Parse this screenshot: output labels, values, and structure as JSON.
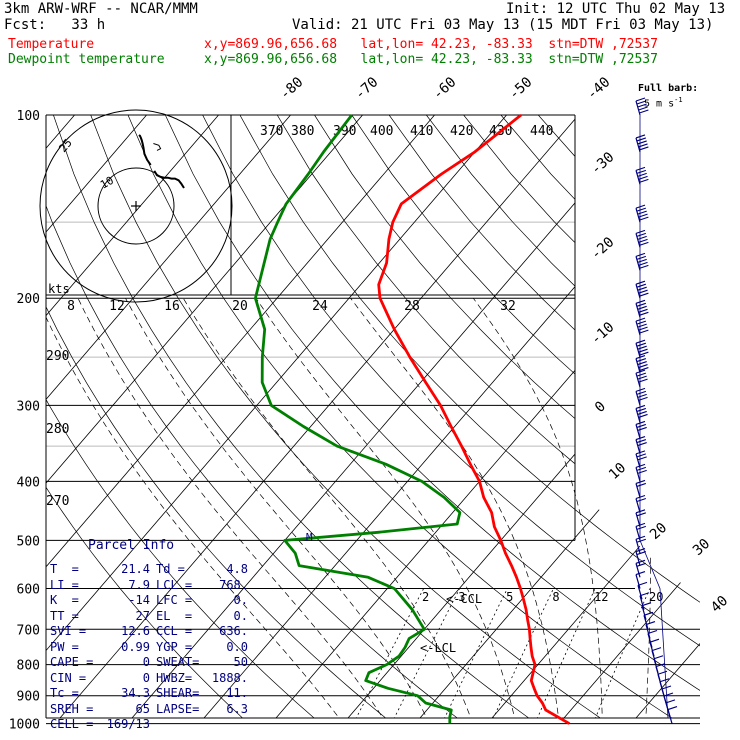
{
  "header": {
    "line1_left": "3km ARW-WRF -- NCAR/MMM",
    "line1_right": "Init: 12 UTC Thu 02 May 13",
    "line2_left": "Fcst:   33 h",
    "line2_right": "Valid: 21 UTC Fri 03 May 13 (15 MDT Fri 03 May 13)",
    "temp_label": "Temperature",
    "temp_info": "x,y=869.96,656.68   lat,lon= 42.23, -83.33  stn=DTW ,72537",
    "dew_label": "Dewpoint temperature",
    "dew_info": "x,y=869.96,656.68   lat,lon= 42.23, -83.33  stn=DTW ,72537",
    "full_barb": "Full barb:",
    "full_barb_units": "5 m s",
    "full_barb_exp": "-1"
  },
  "colors": {
    "temperature": "#ff0000",
    "dewpoint": "#008000",
    "wind": "#000080",
    "parcel_text": "#000080",
    "grid": "#000000"
  },
  "chart_data": {
    "type": "line",
    "subtype": "skew-T log-p",
    "y_scale": "log",
    "ylabel": "",
    "pressure_levels_hPa": [
      "100",
      "200",
      "300",
      "400",
      "500",
      "600",
      "700",
      "800",
      "900",
      "1000"
    ],
    "isotherm_labels_C": [
      "-80",
      "-70",
      "-60",
      "-50",
      "-40",
      "-30",
      "-20",
      "-10",
      "0",
      "10",
      "20",
      "30",
      "40"
    ],
    "theta_labels_K": [
      "370",
      "380",
      "390",
      "400",
      "410",
      "420",
      "430",
      "440"
    ],
    "dry_adiabat_labels_K": [
      "290",
      "280",
      "270"
    ],
    "mixing_ratio_labels": [
      "2",
      "3",
      "5",
      "8",
      "12",
      "20"
    ],
    "pw_axis_labels": [
      "8",
      "12",
      "16",
      "20",
      "24",
      "28",
      "32"
    ],
    "series": [
      {
        "name": "Temperature",
        "color": "#ff0000",
        "points_p_T": [
          [
            1000,
            21.4
          ],
          [
            975,
            19
          ],
          [
            950,
            16.5
          ],
          [
            925,
            15.2
          ],
          [
            900,
            13.6
          ],
          [
            875,
            12.3
          ],
          [
            850,
            11.0
          ],
          [
            825,
            10.3
          ],
          [
            800,
            9.6
          ],
          [
            775,
            8.2
          ],
          [
            750,
            7.0
          ],
          [
            725,
            5.8
          ],
          [
            700,
            4.6
          ],
          [
            675,
            3.2
          ],
          [
            650,
            1.8
          ],
          [
            625,
            0.2
          ],
          [
            600,
            -1.5
          ],
          [
            575,
            -3.4
          ],
          [
            550,
            -5.5
          ],
          [
            525,
            -7.8
          ],
          [
            500,
            -10.0
          ],
          [
            475,
            -12.5
          ],
          [
            450,
            -14.6
          ],
          [
            425,
            -17.5
          ],
          [
            400,
            -20.0
          ],
          [
            375,
            -23.3
          ],
          [
            350,
            -26.7
          ],
          [
            325,
            -30.5
          ],
          [
            300,
            -34.5
          ],
          [
            275,
            -39.3
          ],
          [
            250,
            -44.5
          ],
          [
            225,
            -50.0
          ],
          [
            200,
            -55.7
          ],
          [
            190,
            -57.5
          ],
          [
            175,
            -59.0
          ],
          [
            160,
            -61.5
          ],
          [
            150,
            -63.0
          ],
          [
            140,
            -64.0
          ],
          [
            125,
            -62.0
          ],
          [
            115,
            -60.0
          ],
          [
            100,
            -58.0
          ]
        ]
      },
      {
        "name": "Dewpoint temperature",
        "color": "#008000",
        "points_p_T": [
          [
            1000,
            4.8
          ],
          [
            975,
            4.0
          ],
          [
            950,
            3.4
          ],
          [
            925,
            -1.0
          ],
          [
            900,
            -3.0
          ],
          [
            875,
            -8.0
          ],
          [
            850,
            -12.0
          ],
          [
            825,
            -12.5
          ],
          [
            800,
            -11.0
          ],
          [
            775,
            -10.3
          ],
          [
            750,
            -10.5
          ],
          [
            725,
            -11.0
          ],
          [
            700,
            -10.0
          ],
          [
            650,
            -14.0
          ],
          [
            600,
            -19.0
          ],
          [
            575,
            -24.0
          ],
          [
            550,
            -35.0
          ],
          [
            525,
            -37.0
          ],
          [
            500,
            -40.0
          ],
          [
            485,
            -28.0
          ],
          [
            470,
            -18.0
          ],
          [
            450,
            -19.0
          ],
          [
            425,
            -23.0
          ],
          [
            400,
            -28.0
          ],
          [
            375,
            -35.0
          ],
          [
            350,
            -44.0
          ],
          [
            325,
            -51.0
          ],
          [
            300,
            -58.0
          ],
          [
            275,
            -62.0
          ],
          [
            250,
            -65.0
          ],
          [
            225,
            -68.0
          ],
          [
            200,
            -73.0
          ],
          [
            175,
            -76.0
          ],
          [
            160,
            -78.0
          ],
          [
            150,
            -79.0
          ],
          [
            140,
            -80.0
          ],
          [
            125,
            -80.5
          ],
          [
            115,
            -81.0
          ],
          [
            100,
            -81.5
          ]
        ]
      }
    ],
    "winds": {
      "name": "Wind barbs",
      "color": "#000080",
      "levels_hPa": [
        100,
        115,
        130,
        150,
        165,
        180,
        200,
        215,
        230,
        250,
        265,
        280,
        300,
        320,
        340,
        360,
        380,
        400,
        425,
        450,
        475,
        500,
        525,
        550,
        575,
        600,
        625,
        650,
        675,
        700,
        725,
        750,
        775,
        800,
        825,
        850,
        875,
        900,
        925,
        950,
        975,
        1000
      ],
      "speed_ms": [
        25,
        30,
        32,
        35,
        35,
        33,
        30,
        30,
        28,
        25,
        25,
        22,
        20,
        18,
        17,
        15,
        14,
        13,
        12,
        11,
        10,
        10,
        9,
        8,
        8,
        7,
        6,
        6,
        5,
        5,
        5,
        5,
        5,
        5,
        5,
        5,
        5,
        5,
        5,
        5,
        5,
        5
      ]
    }
  },
  "hodograph": {
    "units_label": "kts",
    "ring_labels": [
      "10",
      "25"
    ],
    "points_uv": [
      [
        0,
        0
      ],
      [
        3,
        5
      ],
      [
        6,
        9
      ],
      [
        10,
        11
      ],
      [
        14,
        11
      ],
      [
        18,
        12
      ],
      [
        22,
        12
      ],
      [
        26,
        13
      ],
      [
        30,
        15
      ],
      [
        33,
        20
      ],
      [
        37,
        27
      ],
      [
        41,
        33
      ],
      [
        44,
        40
      ],
      [
        45,
        47
      ],
      [
        46,
        52
      ],
      [
        47,
        56
      ],
      [
        48,
        59
      ],
      [
        49,
        61
      ],
      [
        50,
        62
      ]
    ],
    "gap_index": 10,
    "bracket_uv": [
      [
        30,
        44
      ],
      [
        26,
        46
      ],
      [
        28,
        50
      ],
      [
        34,
        52
      ]
    ]
  },
  "markers": {
    "ccl": "<-CCL",
    "lcl": "<-LCL",
    "melting": "M"
  },
  "parcel_info": {
    "title": "Parcel Info",
    "rows": [
      {
        "l": "T  =",
        "lv": "21.4",
        "r": "Td =",
        "rv": "4.8"
      },
      {
        "l": "LI =",
        "lv": "7.9",
        "r": "LCL =",
        "rv": "768."
      },
      {
        "l": "K  =",
        "lv": "-14",
        "r": "LFC =",
        "rv": "0."
      },
      {
        "l": "TT =",
        "lv": "27",
        "r": "EL  =",
        "rv": "0."
      },
      {
        "l": "SVI =",
        "lv": "12.6",
        "r": "CCL =",
        "rv": "636."
      },
      {
        "l": "PW =",
        "lv": "0.99",
        "r": "YGP =",
        "rv": "0.0"
      },
      {
        "l": "CAPE =",
        "lv": "0",
        "r": "SWEAT=",
        "rv": "50"
      },
      {
        "l": "CIN =",
        "lv": "0",
        "r": "HWBZ=",
        "rv": "1888."
      },
      {
        "l": "Tc =",
        "lv": "34.3",
        "r": "SHEAR=",
        "rv": "11."
      },
      {
        "l": "SREH =",
        "lv": "65",
        "r": "LAPSE=",
        "rv": "6.3"
      },
      {
        "l": "CELL =",
        "lv": "169/13",
        "r": "",
        "rv": ""
      }
    ]
  }
}
